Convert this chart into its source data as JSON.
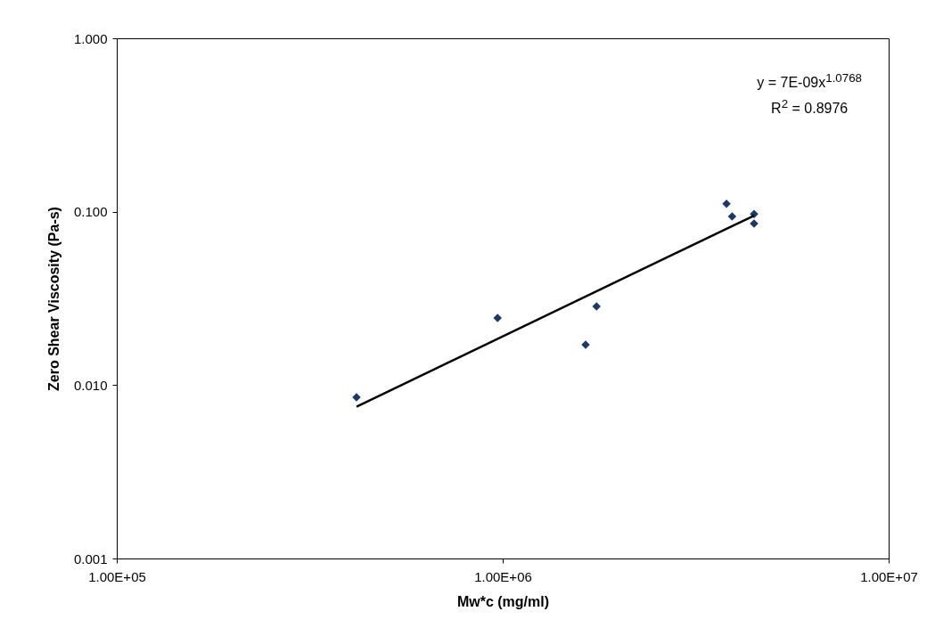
{
  "chart_data": {
    "type": "scatter",
    "xlabel": "Mw*c (mg/ml)",
    "ylabel": "Zero Shear Viscosity (Pa-s)",
    "log": "xy",
    "grid": false,
    "xlim": [
      100000,
      10000000
    ],
    "ylim": [
      0.001,
      1
    ],
    "xticks": [
      {
        "value": 100000,
        "label": "1.00E+05"
      },
      {
        "value": 1000000,
        "label": "1.00E+06"
      },
      {
        "value": 10000000,
        "label": "1.00E+07"
      }
    ],
    "yticks": [
      {
        "value": 0.001,
        "label": "0.001"
      },
      {
        "value": 0.01,
        "label": "0.010"
      },
      {
        "value": 0.1,
        "label": "0.100"
      },
      {
        "value": 1,
        "label": "1.000"
      }
    ],
    "series": [
      {
        "type": "scatter",
        "marker": "diamond",
        "color": "#1f3864",
        "x": [
          418000,
          970000,
          1640000,
          1750000,
          3800000,
          3930000,
          4480000,
          4480000
        ],
        "values": [
          0.0085,
          0.0244,
          0.0171,
          0.0284,
          0.111,
          0.094,
          0.097,
          0.0855
        ]
      },
      {
        "type": "line",
        "marker": "none",
        "color": "#000000",
        "x": [
          418000,
          4480000
        ],
        "values": [
          0.0075,
          0.095
        ]
      }
    ],
    "annotations": [
      "y = 7E-09x$^{1.0768}$",
      "R$^{2}$ = 0.8976"
    ]
  }
}
